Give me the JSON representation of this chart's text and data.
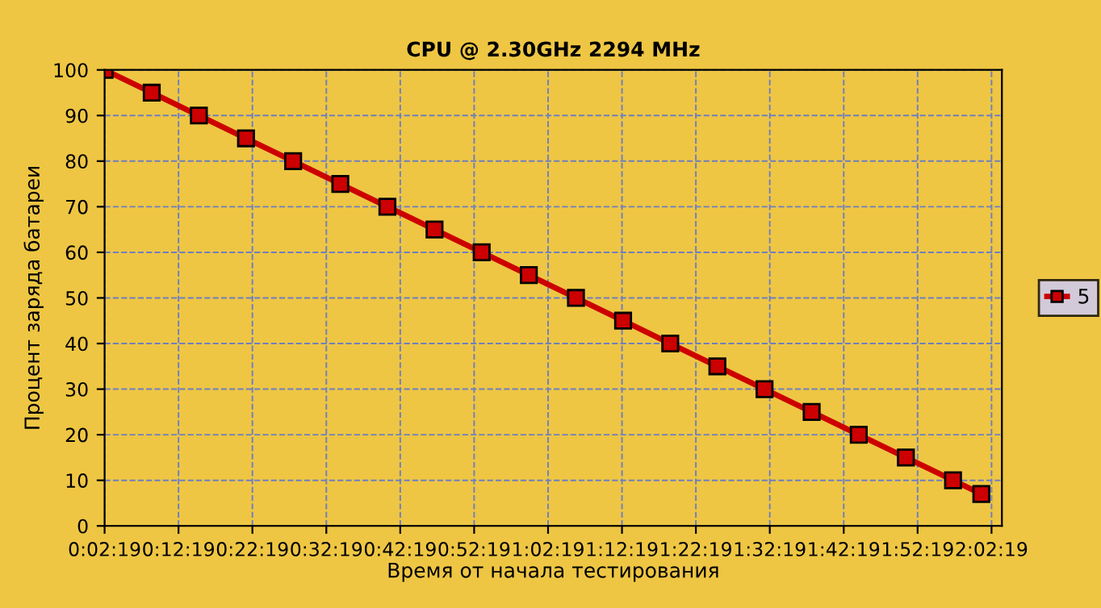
{
  "chart_data": {
    "type": "line",
    "title": "CPU @ 2.30GHz 2294 MHz",
    "xlabel": "Время от начала тестирования",
    "ylabel": "Процент заряда батареи",
    "series": [
      {
        "name": "5",
        "color": "#cc0000",
        "x": [
          0.0386,
          0.1449,
          0.2512,
          0.3575,
          0.4638,
          0.5701,
          0.6763,
          0.7826,
          0.8889,
          0.9952,
          1.1015,
          1.2078,
          1.3141,
          1.4204,
          1.5267,
          1.633,
          1.7392,
          1.8455,
          1.9518,
          2.0156
        ],
        "values": [
          100,
          95,
          90,
          85,
          80,
          75,
          70,
          65,
          60,
          55,
          50,
          45,
          40,
          35,
          30,
          25,
          20,
          15,
          10,
          7
        ]
      }
    ],
    "xlim": [
      0.0386,
      2.062
    ],
    "ylim": [
      0,
      100
    ],
    "xticks": [
      {
        "value": 0.0386,
        "label": "0:02:19"
      },
      {
        "value": 0.2053,
        "label": "0:12:19"
      },
      {
        "value": 0.3719,
        "label": "0:22:19"
      },
      {
        "value": 0.5386,
        "label": "0:32:19"
      },
      {
        "value": 0.7053,
        "label": "0:42:19"
      },
      {
        "value": 0.8719,
        "label": "0:52:19"
      },
      {
        "value": 1.0386,
        "label": "1:02:19"
      },
      {
        "value": 1.2053,
        "label": "1:12:19"
      },
      {
        "value": 1.3719,
        "label": "1:22:19"
      },
      {
        "value": 1.5386,
        "label": "1:32:19"
      },
      {
        "value": 1.7053,
        "label": "1:42:19"
      },
      {
        "value": 1.8719,
        "label": "1:52:19"
      },
      {
        "value": 2.0386,
        "label": "2:02:19"
      }
    ],
    "yticks": [
      0,
      10,
      20,
      30,
      40,
      50,
      60,
      70,
      80,
      90,
      100
    ],
    "grid": true,
    "legend": "right",
    "marker": "square",
    "line_style": "solid"
  }
}
